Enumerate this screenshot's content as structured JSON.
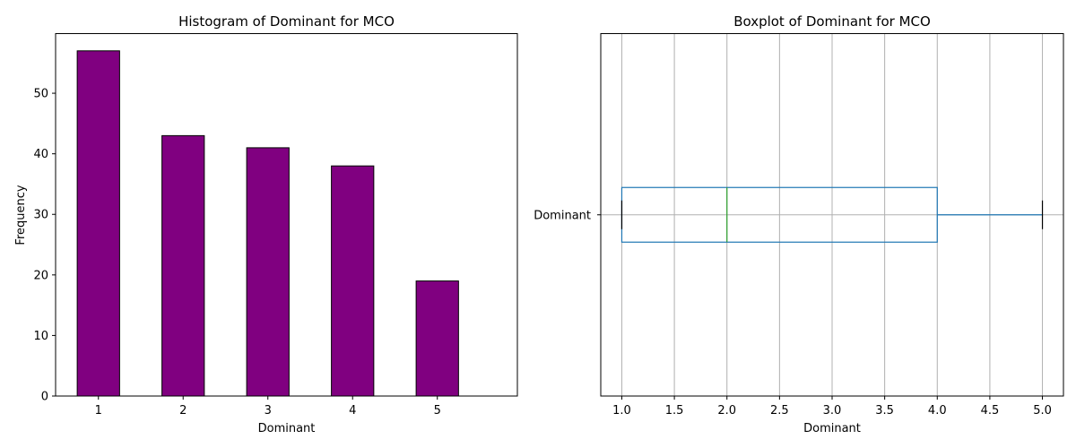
{
  "chart_data": [
    {
      "type": "bar",
      "title": "Histogram of Dominant for MCO",
      "xlabel": "Dominant",
      "ylabel": "Frequency",
      "categories": [
        "1",
        "2",
        "3",
        "4",
        "5"
      ],
      "values": [
        57,
        43,
        41,
        38,
        19
      ],
      "ylim": [
        0,
        59.85
      ],
      "yticks": [
        0,
        10,
        20,
        30,
        40,
        50
      ],
      "bar_color": "#800080",
      "edge_color": "#000000",
      "grid": false
    },
    {
      "type": "boxplot",
      "title": "Boxplot of Dominant for MCO",
      "xlabel": "Dominant",
      "category": "Dominant",
      "stats": {
        "whislo": 1,
        "q1": 1,
        "med": 2,
        "q3": 4,
        "whishi": 5
      },
      "xlim": [
        0.8,
        5.2
      ],
      "xticks": [
        1.0,
        1.5,
        2.0,
        2.5,
        3.0,
        3.5,
        4.0,
        4.5,
        5.0
      ],
      "box_color": "#1f77b4",
      "median_color": "#2ca02c",
      "whisker_color": "#1f77b4",
      "cap_color": "#000000",
      "grid": true,
      "grid_color": "#b0b0b0"
    }
  ]
}
